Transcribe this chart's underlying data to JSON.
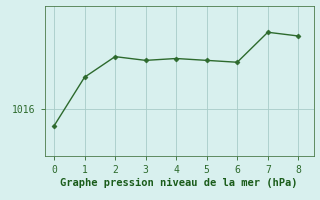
{
  "x": [
    0,
    1,
    2,
    3,
    4,
    5,
    6,
    7,
    8
  ],
  "y": [
    1015.1,
    1017.7,
    1018.8,
    1018.6,
    1018.7,
    1018.6,
    1018.5,
    1020.1,
    1019.9
  ],
  "line_color": "#2d6a2d",
  "marker": "D",
  "marker_size": 2.5,
  "bg_color": "#d8f0ee",
  "grid_color": "#a8ccc8",
  "xlabel": "Graphe pression niveau de la mer (hPa)",
  "xlabel_color": "#1a5c1a",
  "xlabel_fontsize": 7.5,
  "ytick_label": "1016",
  "ytick_value": 1016,
  "xlim": [
    -0.3,
    8.5
  ],
  "ylim": [
    1013.5,
    1021.5
  ],
  "tick_color": "#2d6a2d",
  "tick_fontsize": 7,
  "axis_color": "#4a7a4a",
  "linewidth": 1.0
}
